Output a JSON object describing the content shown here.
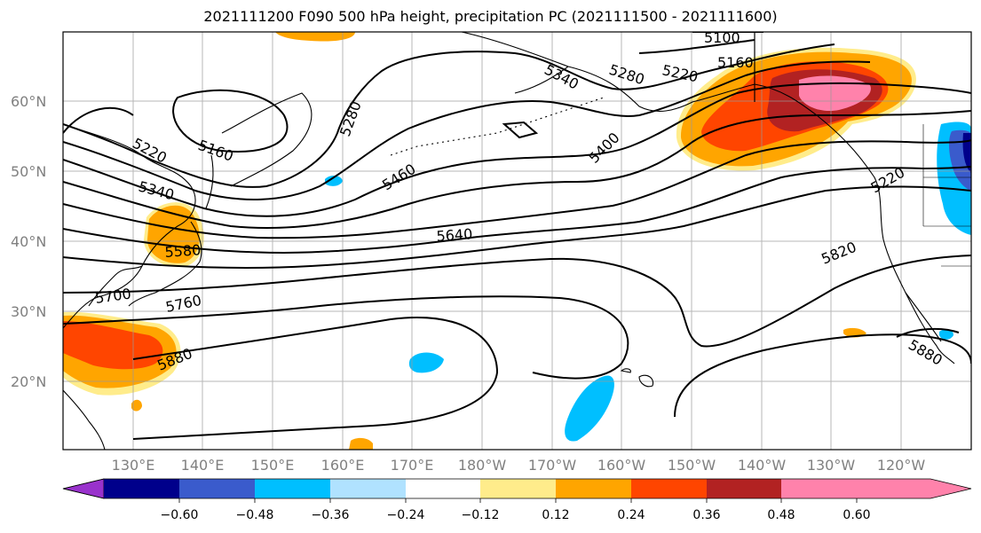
{
  "title": "2021111200 F090 500 hPa height, precipitation PC (2021111500 - 2021111600)",
  "map": {
    "lat_labels": [
      "60°N",
      "50°N",
      "40°N",
      "30°N",
      "20°N"
    ],
    "lon_labels": [
      "130°E",
      "140°E",
      "150°E",
      "160°E",
      "170°E",
      "180°W",
      "170°W",
      "160°W",
      "150°W",
      "140°W",
      "130°W",
      "120°W"
    ],
    "contour_labels": [
      "5100",
      "5160",
      "5220",
      "5280",
      "5340",
      "5400",
      "5460",
      "5220",
      "5160",
      "5220",
      "5280",
      "5340",
      "5580",
      "5640",
      "5700",
      "5760",
      "5820",
      "5880",
      "5880"
    ]
  },
  "colorbar": {
    "ticks": [
      "−0.60",
      "−0.48",
      "−0.36",
      "−0.24",
      "−0.12",
      "0.12",
      "0.24",
      "0.36",
      "0.48",
      "0.60"
    ],
    "colors": [
      "#9932cc",
      "#00008b",
      "#3a5bcc",
      "#00bfff",
      "#b0e2ff",
      "#ffffff",
      "#ffec8b",
      "#ffa500",
      "#ff4500",
      "#b22222",
      "#ff82ab"
    ]
  }
}
